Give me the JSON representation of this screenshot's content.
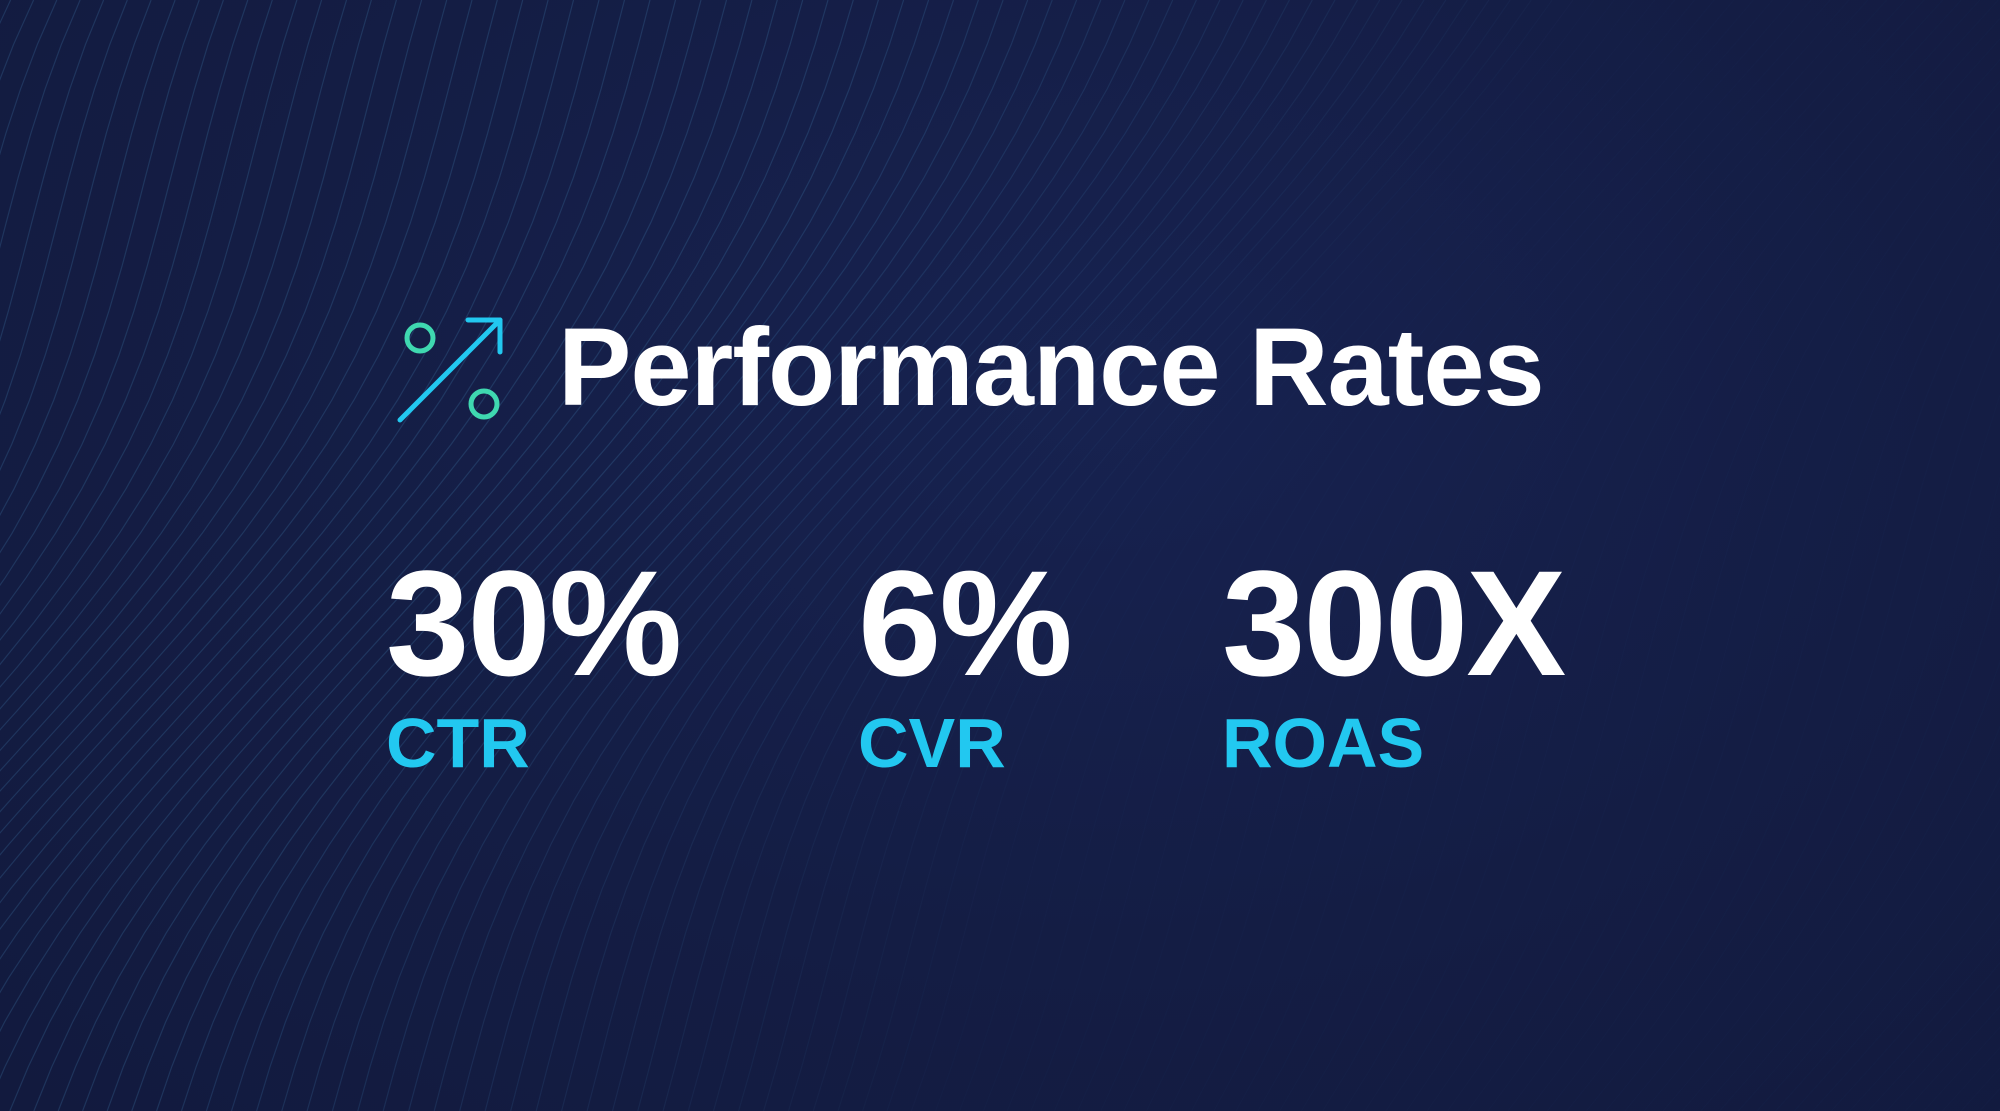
{
  "colors": {
    "background": "#151e45",
    "title": "#ffffff",
    "value": "#ffffff",
    "label": "#22c8f0",
    "icon_arrow": "#22c8f0",
    "icon_circles": "#3fd8b0",
    "pattern_lines": "#3a6fa0"
  },
  "header": {
    "icon": "percent-growth-icon",
    "title": "Performance Rates"
  },
  "stats": [
    {
      "value": "30%",
      "label": "CTR"
    },
    {
      "value": "6%",
      "label": "CVR"
    },
    {
      "value": "300X",
      "label": "ROAS"
    }
  ]
}
